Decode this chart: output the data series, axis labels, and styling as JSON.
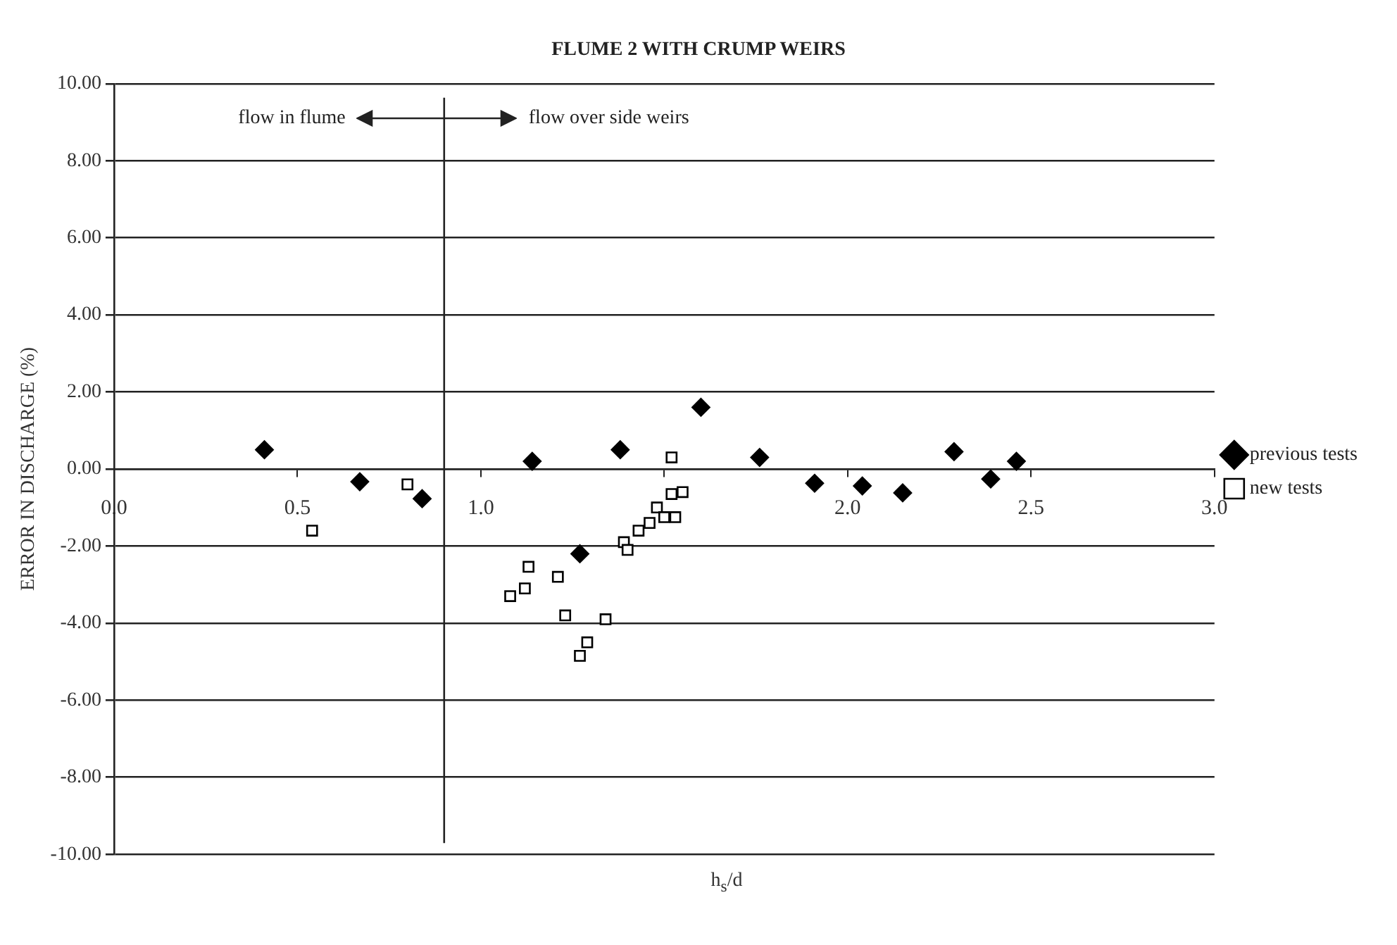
{
  "chart_data": {
    "type": "scatter",
    "title": "FLUME 2 WITH CRUMP WEIRS",
    "xlabel": "h$_{s}$/d",
    "ylabel": "ERROR IN DISCHARGE (%)",
    "series": [
      {
        "name": "previous tests",
        "color": "#000000",
        "marker": "diamond",
        "x": [
          0.41,
          0.67,
          0.84,
          1.14,
          1.27,
          1.38,
          1.6,
          1.76,
          1.91,
          2.04,
          2.15,
          2.29,
          2.39,
          2.46
        ],
        "values": [
          0.5,
          -0.33,
          -0.77,
          0.2,
          -2.2,
          0.5,
          1.6,
          0.3,
          -0.37,
          -0.44,
          -0.62,
          0.45,
          -0.26,
          0.2
        ]
      },
      {
        "name": "new tests",
        "color": "#000000",
        "marker": "square",
        "x": [
          0.54,
          0.8,
          1.13,
          1.12,
          1.08,
          1.21,
          1.23,
          1.29,
          1.27,
          1.34,
          1.39,
          1.4,
          1.43,
          1.46,
          1.48,
          1.5,
          1.53,
          1.52,
          1.55,
          1.52
        ],
        "values": [
          -1.6,
          -0.4,
          -2.54,
          -3.1,
          -3.3,
          -2.8,
          -3.8,
          -4.5,
          -4.85,
          -3.9,
          -1.9,
          -2.1,
          -1.6,
          -1.4,
          -1.0,
          -1.25,
          -1.25,
          -0.65,
          -0.6,
          0.3
        ]
      }
    ],
    "xlim": [
      0,
      3
    ],
    "xticks": [
      {
        "value": 0,
        "label": "0.0"
      },
      {
        "value": 0.5,
        "label": "0.5"
      },
      {
        "value": 1,
        "label": "1.0"
      },
      {
        "value": 1.5,
        "label": null
      },
      {
        "value": 2,
        "label": "2.0"
      },
      {
        "value": 2.5,
        "label": "2.5"
      },
      {
        "value": 3,
        "label": "3.0"
      }
    ],
    "ylim": [
      -10,
      10
    ],
    "yticks": [
      {
        "value": -10,
        "label": "-10.00"
      },
      {
        "value": -8,
        "label": "-8.00"
      },
      {
        "value": -6,
        "label": "-6.00"
      },
      {
        "value": -4,
        "label": "-4.00"
      },
      {
        "value": -2,
        "label": "-2.00"
      },
      {
        "value": 0,
        "label": "0.00"
      },
      {
        "value": 2,
        "label": "2.00"
      },
      {
        "value": 4,
        "label": "4.00"
      },
      {
        "value": 6,
        "label": "6.00"
      },
      {
        "value": 8,
        "label": "8.00"
      },
      {
        "value": 10,
        "label": "10.00"
      }
    ],
    "ref_lines": [
      {
        "axis": "x",
        "value": 0.9
      }
    ],
    "annotations": [
      "flow in flume",
      "flow over side weirs"
    ],
    "grid": "y",
    "legend": "right"
  }
}
